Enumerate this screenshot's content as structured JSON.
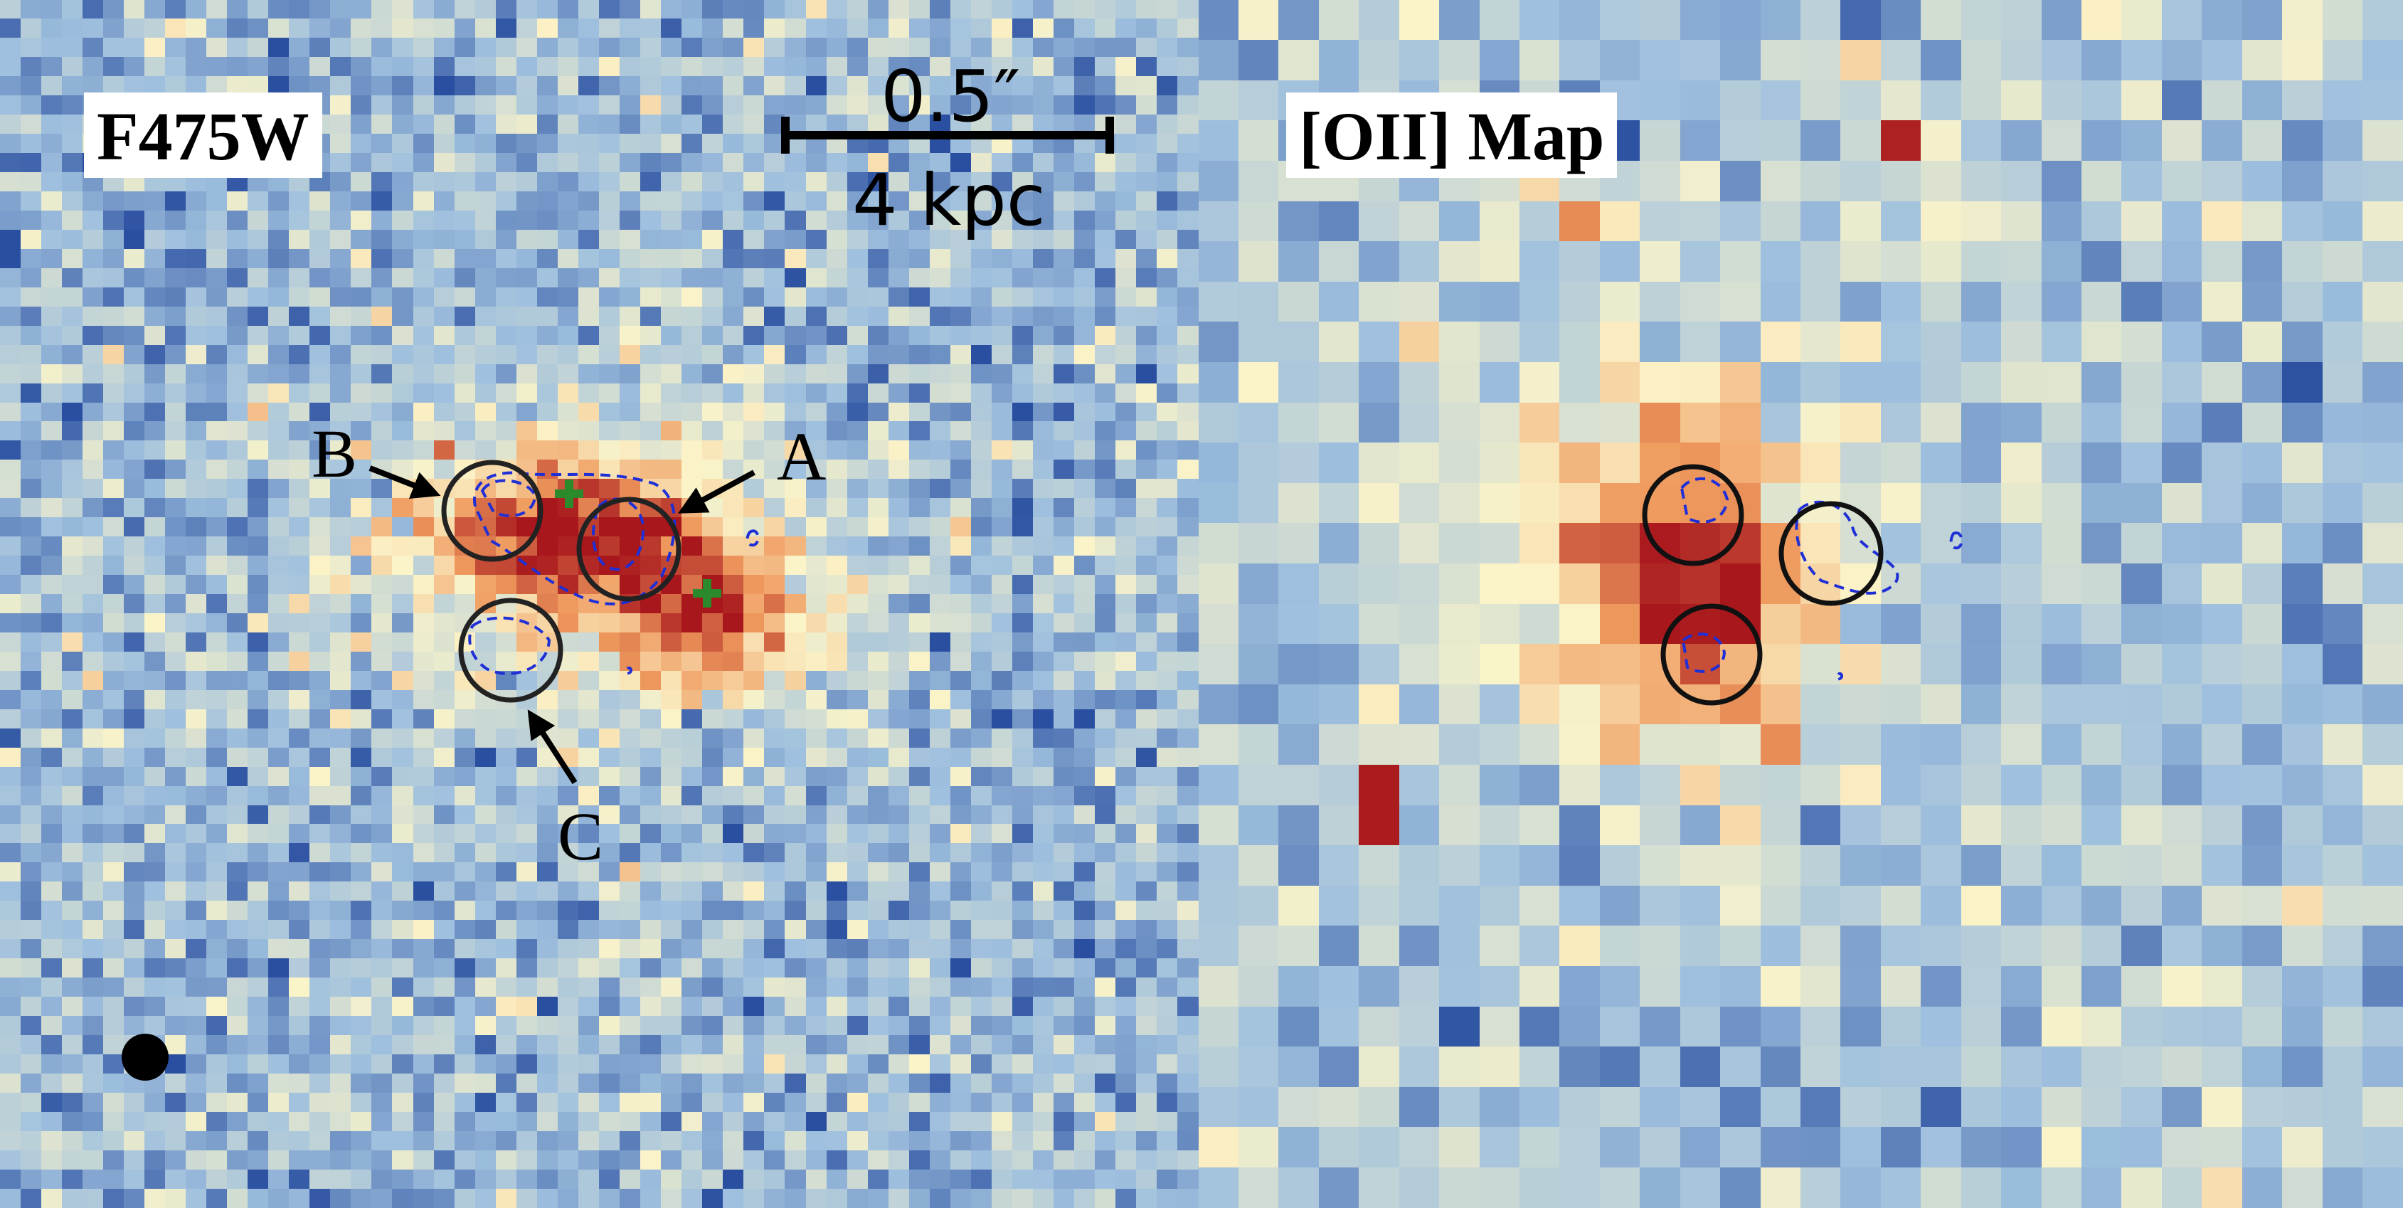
{
  "panels": [
    {
      "label": "F475W",
      "grid_cols": 58,
      "grid_rows": 63,
      "seed": 17
    },
    {
      "label": "[OII] Map",
      "grid_cols": 30,
      "grid_rows": 30,
      "seed": 91
    }
  ],
  "scalebar": {
    "angular": "0.5″",
    "physical": "4 kpc"
  },
  "annotations": {
    "a": "A",
    "b": "B",
    "c": "C"
  },
  "colors": {
    "low": "#2a4fa0",
    "mid_low": "#9fc0de",
    "neutral": "#fbf4c9",
    "mid_high": "#ef9a5e",
    "high": "#a8171c",
    "contour": "#1f2fd6",
    "marker": "#2b8a2b",
    "aperture": "#222222",
    "psf_dot": "#000000"
  }
}
